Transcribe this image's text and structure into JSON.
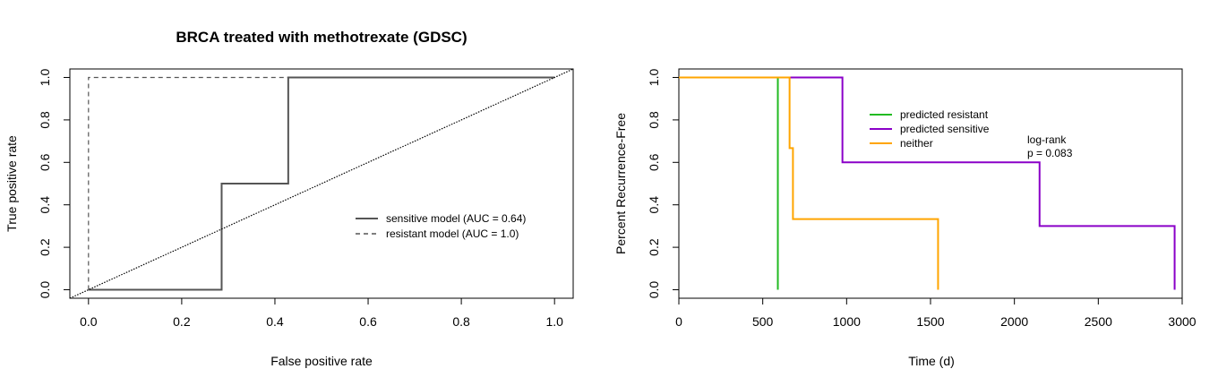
{
  "chart_data": [
    {
      "type": "line",
      "title": "BRCA treated with methotrexate (GDSC)",
      "xlabel": "False positive rate",
      "ylabel": "True positive rate",
      "xlim": [
        -0.04,
        1.04
      ],
      "ylim": [
        -0.04,
        1.04
      ],
      "xticks": [
        0.0,
        0.2,
        0.4,
        0.6,
        0.8,
        1.0
      ],
      "xtick_labels": [
        "0.0",
        "0.2",
        "0.4",
        "0.6",
        "0.8",
        "1.0"
      ],
      "yticks": [
        0.0,
        0.2,
        0.4,
        0.6,
        0.8,
        1.0
      ],
      "ytick_labels": [
        "0.0",
        "0.2",
        "0.4",
        "0.6",
        "0.8",
        "1.0"
      ],
      "grid": false,
      "legend_position": "center-right",
      "series": [
        {
          "name": "sensitive model (AUC = 0.64)",
          "style": "solid",
          "color": "#555555",
          "x": [
            0.0,
            0.0,
            0.2857,
            0.2857,
            0.4286,
            0.4286,
            1.0,
            1.0
          ],
          "y": [
            0.0,
            0.0,
            0.0,
            0.5,
            0.5,
            1.0,
            1.0,
            1.0
          ]
        },
        {
          "name": "resistant model (AUC = 1.0)",
          "style": "dashed",
          "color": "#555555",
          "x": [
            0.0,
            0.0,
            1.0
          ],
          "y": [
            0.0,
            1.0,
            1.0
          ]
        },
        {
          "style": "dotted",
          "color": "#000000",
          "x": [
            -0.04,
            1.04
          ],
          "y": [
            -0.04,
            1.04
          ]
        }
      ]
    },
    {
      "type": "line",
      "title": "",
      "xlabel": "Time (d)",
      "ylabel": "Percent Recurrence-Free",
      "xlim": [
        0,
        3000
      ],
      "ylim": [
        -0.04,
        1.04
      ],
      "xticks": [
        0,
        500,
        1000,
        1500,
        2000,
        2500,
        3000
      ],
      "xtick_labels": [
        "0",
        "500",
        "1000",
        "1500",
        "2000",
        "2500",
        "3000"
      ],
      "yticks": [
        0.0,
        0.2,
        0.4,
        0.6,
        0.8,
        1.0
      ],
      "ytick_labels": [
        "0.0",
        "0.2",
        "0.4",
        "0.6",
        "0.8",
        "1.0"
      ],
      "grid": false,
      "legend_position": "top-center",
      "annotation": [
        "log-rank",
        "p = 0.083"
      ],
      "series": [
        {
          "name": "predicted resistant",
          "color": "#22BB22",
          "x": [
            0,
            590,
            590
          ],
          "y": [
            1.0,
            1.0,
            0.0
          ]
        },
        {
          "name": "predicted sensitive",
          "color": "#8A00C8",
          "x": [
            0,
            975,
            975,
            2150,
            2150,
            2955,
            2955
          ],
          "y": [
            1.0,
            1.0,
            0.6,
            0.6,
            0.3,
            0.3,
            0.0
          ]
        },
        {
          "name": "neither",
          "color": "#FFA500",
          "x": [
            0,
            660,
            660,
            680,
            680,
            1545,
            1545
          ],
          "y": [
            1.0,
            1.0,
            0.667,
            0.667,
            0.333,
            0.333,
            0.0
          ]
        }
      ]
    }
  ]
}
